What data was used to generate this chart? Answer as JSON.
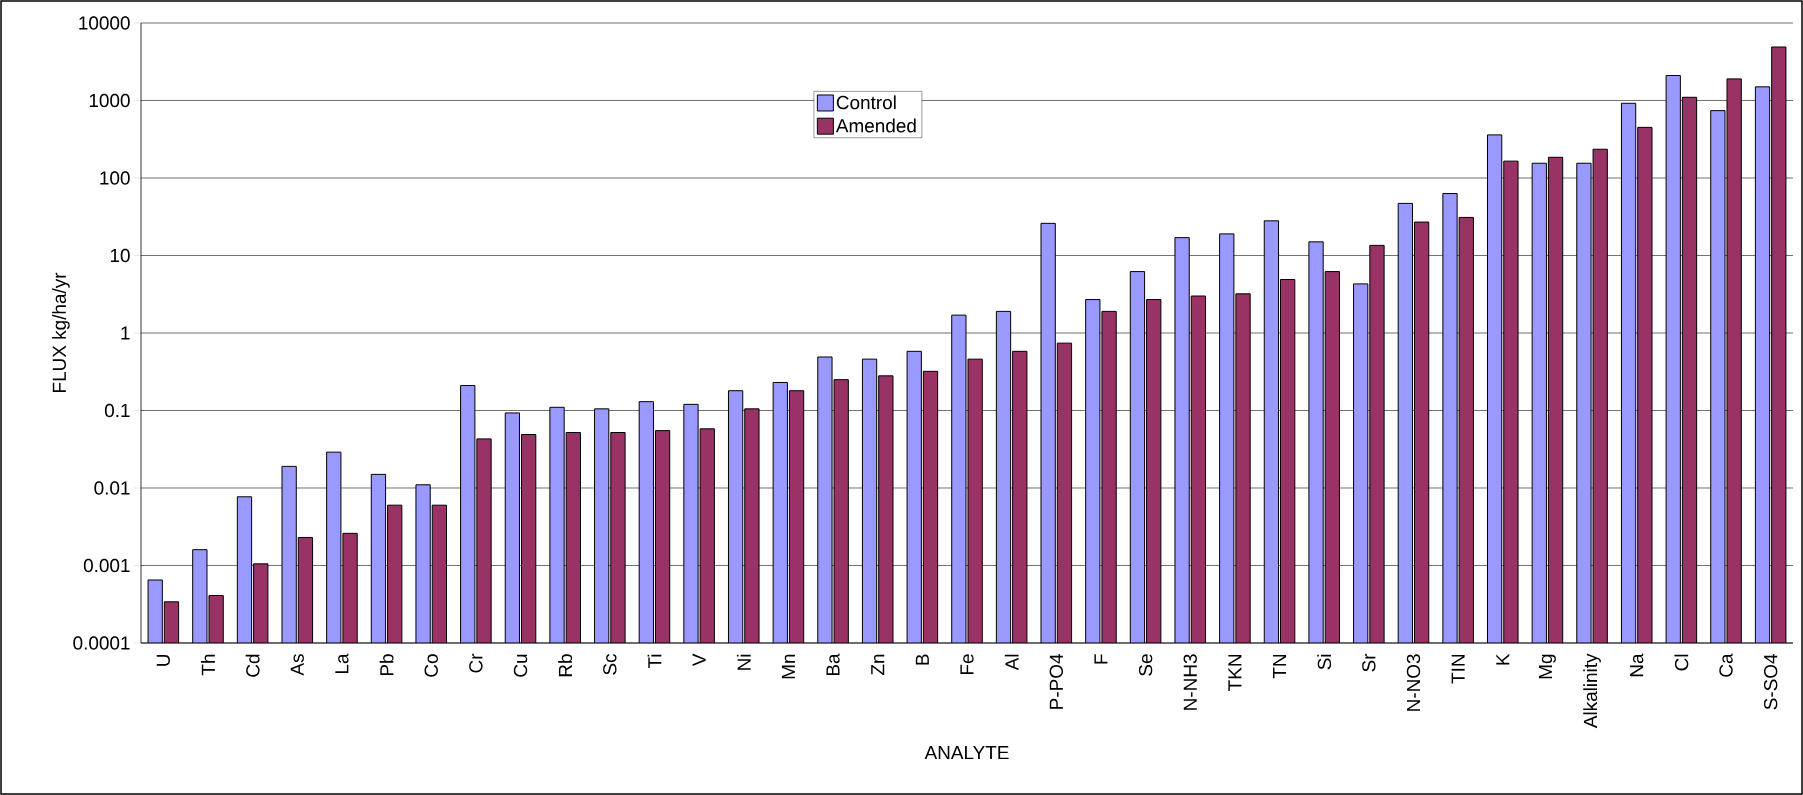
{
  "chart_data": {
    "type": "bar",
    "xlabel": "ANALYTE",
    "ylabel": "FLUX kg/ha/yr",
    "categories": [
      "U",
      "Th",
      "Cd",
      "As",
      "La",
      "Pb",
      "Co",
      "Cr",
      "Cu",
      "Rb",
      "Sc",
      "Ti",
      "V",
      "Ni",
      "Mn",
      "Ba",
      "Zn",
      "B",
      "Fe",
      "Al",
      "P-PO4",
      "F",
      "Se",
      "N-NH3",
      "TKN",
      "TN",
      "Si",
      "Sr",
      "N-NO3",
      "TIN",
      "K",
      "Mg",
      "Alkalinity",
      "Na",
      "Cl",
      "Ca",
      "S-SO4"
    ],
    "series": [
      {
        "name": "Control",
        "color": "#9999ff",
        "values": [
          0.00065,
          0.0016,
          0.0077,
          0.019,
          0.029,
          0.015,
          0.011,
          0.21,
          0.093,
          0.11,
          0.105,
          0.13,
          0.12,
          0.18,
          0.23,
          0.49,
          0.46,
          0.58,
          1.7,
          1.9,
          26,
          2.7,
          6.2,
          17,
          19,
          28,
          15,
          4.3,
          47,
          63,
          360,
          155,
          155,
          920,
          2100,
          740,
          1500
        ]
      },
      {
        "name": "Amended",
        "color": "#993366",
        "values": [
          0.00034,
          0.00041,
          0.00105,
          0.0023,
          0.0026,
          0.006,
          0.006,
          0.043,
          0.049,
          0.052,
          0.052,
          0.055,
          0.058,
          0.105,
          0.18,
          0.25,
          0.28,
          0.32,
          0.46,
          0.58,
          0.74,
          1.9,
          2.7,
          3.0,
          3.2,
          4.9,
          6.2,
          13.5,
          27,
          31,
          165,
          185,
          235,
          450,
          1100,
          1900,
          4900
        ]
      }
    ],
    "log": "y",
    "ylim": [
      0.0001,
      10000
    ],
    "yticks": [
      0.0001,
      0.001,
      0.01,
      0.1,
      1,
      10,
      100,
      1000,
      10000
    ],
    "grid": "y",
    "legend": "top"
  }
}
